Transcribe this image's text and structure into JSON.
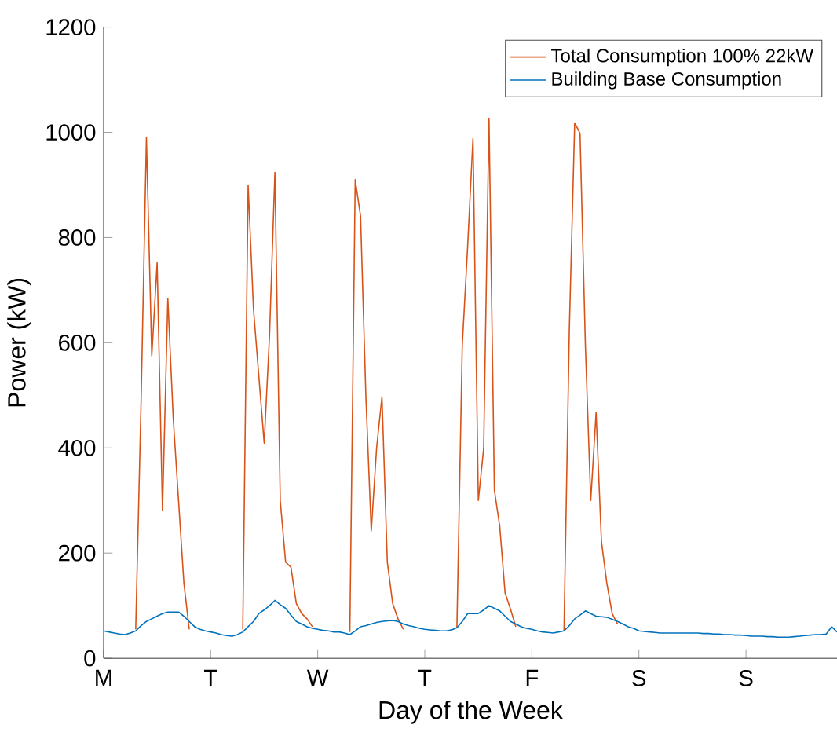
{
  "chart_data": {
    "type": "line",
    "xlabel": "Day of the Week",
    "ylabel": "Power (kW)",
    "categories": [
      "M",
      null,
      null,
      null,
      null,
      null,
      null,
      null,
      null,
      null,
      null,
      null,
      null,
      null,
      null,
      null,
      null,
      null,
      null,
      null,
      "T",
      null,
      null,
      null,
      null,
      null,
      null,
      null,
      null,
      null,
      null,
      null,
      null,
      null,
      null,
      null,
      null,
      null,
      null,
      null,
      "W",
      null,
      null,
      null,
      null,
      null,
      null,
      null,
      null,
      null,
      null,
      null,
      null,
      null,
      null,
      null,
      null,
      null,
      null,
      null,
      "T",
      null,
      null,
      null,
      null,
      null,
      null,
      null,
      null,
      null,
      null,
      null,
      null,
      null,
      null,
      null,
      null,
      null,
      null,
      null,
      "F",
      null,
      null,
      null,
      null,
      null,
      null,
      null,
      null,
      null,
      null,
      null,
      null,
      null,
      null,
      null,
      null,
      null,
      null,
      null,
      "S",
      null,
      null,
      null,
      null,
      null,
      null,
      null,
      null,
      null,
      null,
      null,
      null,
      null,
      null,
      null,
      null,
      null,
      null,
      null,
      "S",
      null,
      null,
      null,
      null,
      null,
      null,
      null,
      null,
      null,
      null,
      null,
      null,
      null,
      null,
      null,
      null,
      null
    ],
    "ylim": [
      0,
      1200
    ],
    "yticks": [
      0,
      200,
      400,
      600,
      800,
      1000,
      1200
    ],
    "legend": "top right",
    "grid": false,
    "marker": "none",
    "line_style": "solid",
    "series": [
      {
        "name": "Total Consumption 100% 22kW",
        "color": "#d95319",
        "values": [
          null,
          null,
          null,
          null,
          null,
          null,
          55,
          487,
          990,
          575,
          752,
          281,
          684,
          458,
          300,
          143,
          55,
          null,
          null,
          null,
          null,
          null,
          null,
          null,
          null,
          null,
          55,
          900,
          664,
          536,
          409,
          615,
          924,
          300,
          183,
          173,
          104,
          85,
          75,
          60,
          null,
          null,
          null,
          null,
          null,
          null,
          50,
          910,
          841,
          497,
          242,
          400,
          497,
          183,
          104,
          75,
          55,
          null,
          null,
          null,
          null,
          null,
          null,
          null,
          null,
          null,
          58,
          595,
          782,
          988,
          300,
          399,
          1027,
          320,
          251,
          124,
          94,
          60,
          null,
          null,
          null,
          null,
          null,
          null,
          null,
          null,
          52,
          625,
          1018,
          998,
          595,
          300,
          467,
          222,
          143,
          85,
          65,
          null,
          null,
          null,
          null,
          null,
          null,
          null,
          null,
          null,
          null,
          null,
          null,
          null,
          null,
          null,
          null,
          null,
          null,
          null,
          null,
          null,
          null,
          null,
          null,
          null,
          null,
          null,
          null,
          null,
          null,
          null,
          null,
          null,
          null,
          null,
          null,
          null,
          null,
          null,
          null,
          null
        ]
      },
      {
        "name": "Building Base Consumption",
        "color": "#0072bd",
        "values": [
          52,
          50,
          48,
          46,
          45,
          48,
          52,
          62,
          70,
          75,
          80,
          85,
          88,
          88,
          88,
          80,
          70,
          60,
          55,
          52,
          50,
          48,
          45,
          43,
          42,
          45,
          50,
          60,
          70,
          85,
          92,
          100,
          110,
          102,
          95,
          82,
          70,
          65,
          60,
          57,
          55,
          53,
          52,
          50,
          50,
          48,
          45,
          52,
          60,
          62,
          65,
          68,
          70,
          71,
          72,
          70,
          65,
          62,
          60,
          57,
          55,
          54,
          53,
          52,
          52,
          54,
          58,
          70,
          85,
          85,
          85,
          92,
          100,
          95,
          90,
          80,
          70,
          65,
          60,
          57,
          55,
          52,
          50,
          49,
          48,
          50,
          52,
          62,
          75,
          82,
          90,
          85,
          80,
          79,
          78,
          74,
          70,
          65,
          60,
          57,
          52,
          51,
          50,
          49,
          48,
          48,
          48,
          48,
          48,
          48,
          48,
          48,
          47,
          47,
          46,
          46,
          45,
          45,
          44,
          44,
          43,
          42,
          42,
          42,
          41,
          41,
          40,
          40,
          40,
          41,
          42,
          43,
          44,
          45,
          45,
          46,
          60,
          50
        ]
      }
    ]
  }
}
